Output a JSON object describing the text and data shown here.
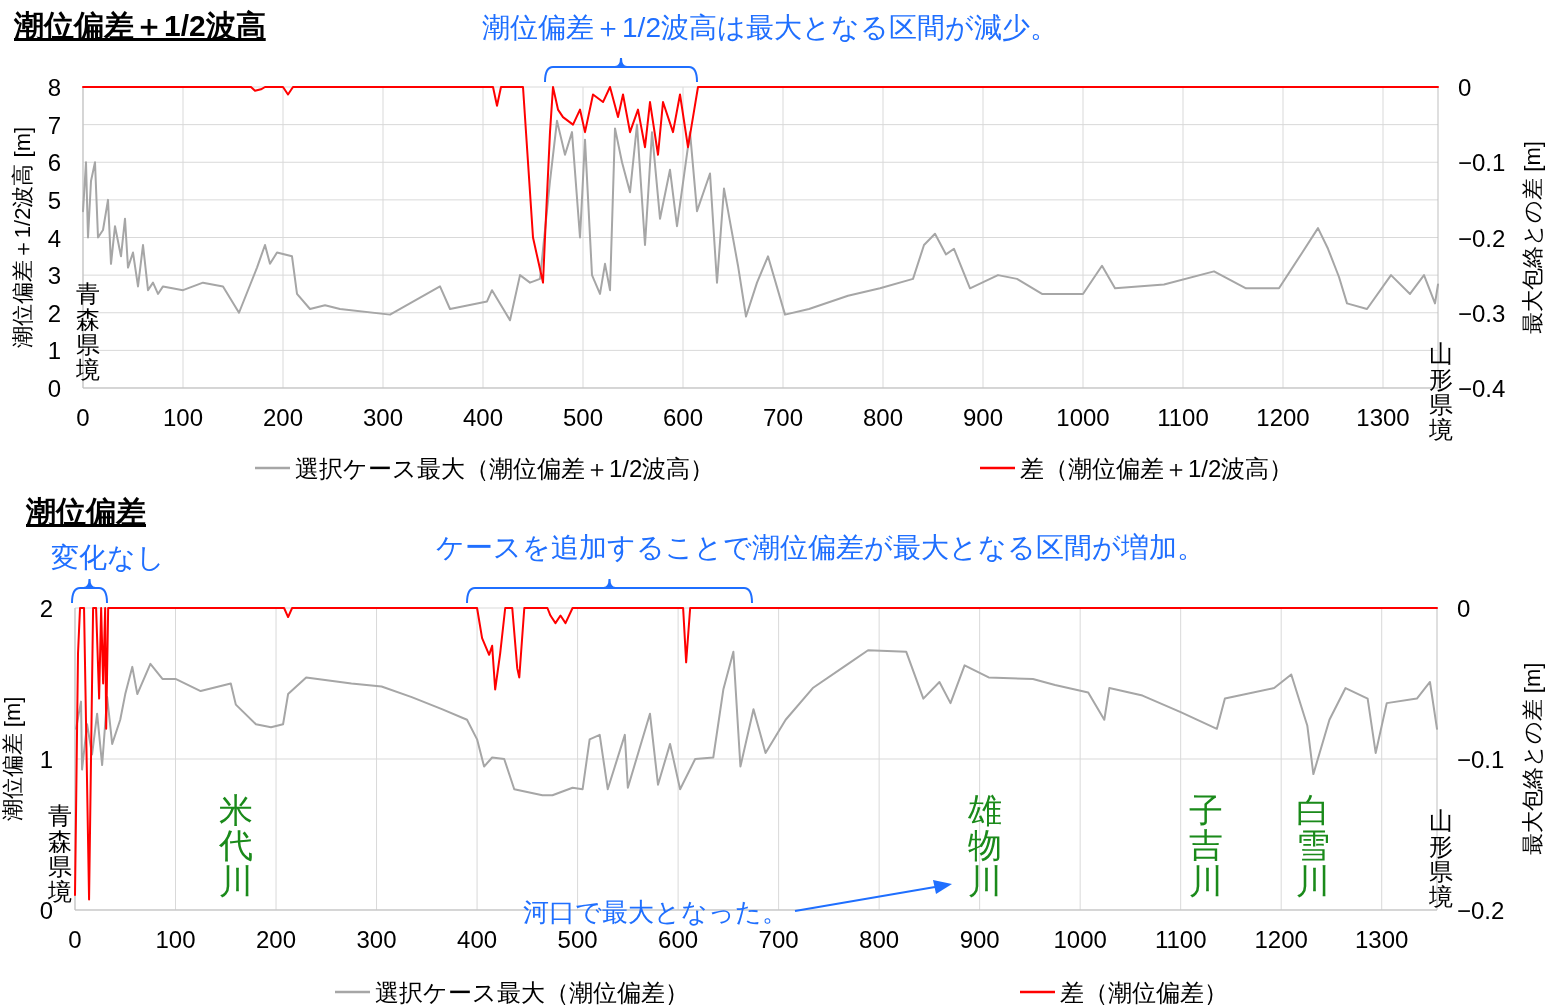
{
  "chart_data": [
    {
      "type": "line",
      "title": "潮位偏差＋1/2波高",
      "ylabel": "潮位偏差＋1/2波高 [m]",
      "y2label": "最大包絡との差 [m]",
      "xlim": [
        0,
        1355
      ],
      "xticks": [
        0,
        100,
        200,
        300,
        400,
        500,
        600,
        700,
        800,
        900,
        1000,
        1100,
        1200,
        1300
      ],
      "ylim": [
        0,
        8
      ],
      "yticks": [
        0,
        1,
        2,
        3,
        4,
        5,
        6,
        7,
        8
      ],
      "y2lim": [
        -0.4,
        0
      ],
      "y2ticks": [
        {
          "value": -0.4,
          "label": "−0.4"
        },
        {
          "value": -0.3,
          "label": "−0.3"
        },
        {
          "value": -0.2,
          "label": "−0.2"
        },
        {
          "value": -0.1,
          "label": "−0.1"
        },
        0
      ],
      "grid": true,
      "legend": "bottom",
      "line_style": "solid",
      "series": [
        {
          "name": "選択ケース最大（潮位偏差＋1/2波高）",
          "color": "#a6a6a6",
          "x": [
            0,
            3,
            5,
            8,
            12,
            15,
            20,
            25,
            28,
            32,
            38,
            42,
            45,
            50,
            55,
            60,
            65,
            70,
            75,
            80,
            100,
            120,
            140,
            156,
            174,
            182,
            187,
            194,
            209,
            214,
            227,
            242,
            257,
            307,
            357,
            367,
            404,
            409,
            427,
            437,
            447,
            457,
            467,
            474,
            482,
            489,
            497,
            502,
            509,
            517,
            522,
            527,
            532,
            539,
            547,
            554,
            562,
            569,
            577,
            587,
            594,
            607,
            614,
            627,
            634,
            641,
            655,
            663,
            674,
            685,
            702,
            726,
            765,
            797,
            830,
            841,
            852,
            863,
            871,
            887,
            915,
            934,
            959,
            1000,
            1019,
            1032,
            1081,
            1131,
            1163,
            1196,
            1218,
            1235,
            1245,
            1256,
            1264,
            1284,
            1308,
            1327,
            1341,
            1352,
            1355
          ],
          "values": [
            4.7,
            6.0,
            4.0,
            5.5,
            6.0,
            4.0,
            4.2,
            5.0,
            3.3,
            4.3,
            3.5,
            4.5,
            3.2,
            3.6,
            2.7,
            3.8,
            2.6,
            2.8,
            2.5,
            2.7,
            2.6,
            2.8,
            2.7,
            2.0,
            3.2,
            3.8,
            3.3,
            3.6,
            3.5,
            2.5,
            2.1,
            2.2,
            2.1,
            1.95,
            2.7,
            2.1,
            2.3,
            2.6,
            1.8,
            3.0,
            2.8,
            2.9,
            5.5,
            7.1,
            6.2,
            6.8,
            4.0,
            6.6,
            3.0,
            2.5,
            3.3,
            2.6,
            6.9,
            6.0,
            5.2,
            7.0,
            3.8,
            6.8,
            4.5,
            5.8,
            4.3,
            6.8,
            4.7,
            5.7,
            2.8,
            5.3,
            3.25,
            1.9,
            2.8,
            3.5,
            1.95,
            2.1,
            2.45,
            2.65,
            2.9,
            3.8,
            4.1,
            3.55,
            3.7,
            2.65,
            3.0,
            2.9,
            2.5,
            2.5,
            3.25,
            2.65,
            2.75,
            3.1,
            2.65,
            2.65,
            3.55,
            4.25,
            3.7,
            2.95,
            2.25,
            2.1,
            3.0,
            2.5,
            3.0,
            2.25,
            2.75
          ]
        },
        {
          "name": "差（潮位偏差＋1/2波高）",
          "color": "#ff0000",
          "axis": "y2",
          "x": [
            0,
            168,
            172,
            178,
            182,
            200,
            205,
            210,
            410,
            414,
            418,
            440,
            445,
            450,
            455,
            460,
            462,
            467,
            470,
            475,
            480,
            490,
            497,
            502,
            510,
            520,
            527,
            535,
            540,
            547,
            555,
            562,
            567,
            575,
            580,
            590,
            597,
            605,
            610,
            615,
            1355
          ],
          "values": [
            0,
            0,
            -0.005,
            -0.003,
            0,
            0,
            -0.01,
            0,
            0,
            -0.025,
            0,
            0,
            -0.1,
            -0.2,
            -0.23,
            -0.26,
            -0.2,
            -0.06,
            0,
            -0.03,
            -0.04,
            -0.05,
            -0.03,
            -0.06,
            -0.01,
            -0.02,
            0,
            -0.04,
            -0.01,
            -0.06,
            -0.03,
            -0.08,
            -0.02,
            -0.09,
            -0.02,
            -0.06,
            -0.01,
            -0.08,
            -0.04,
            0,
            0
          ]
        }
      ],
      "annotations": [
        "潮位偏差＋1/2波高は最大となる区間が減少。",
        "青森県境",
        "山形県境"
      ]
    },
    {
      "type": "line",
      "title": "潮位偏差",
      "ylabel": "潮位偏差 [m]",
      "y2label": "最大包絡との差 [m]",
      "xlim": [
        0,
        1355
      ],
      "xticks": [
        0,
        100,
        200,
        300,
        400,
        500,
        600,
        700,
        800,
        900,
        1000,
        1100,
        1200,
        1300
      ],
      "ylim": [
        0,
        2
      ],
      "yticks": [
        0,
        1,
        2
      ],
      "y2lim": [
        -0.2,
        0
      ],
      "y2ticks": [
        {
          "value": -0.2,
          "label": "−0.2"
        },
        {
          "value": -0.1,
          "label": "−0.1"
        },
        0
      ],
      "grid": true,
      "legend": "bottom",
      "line_style": "solid",
      "series": [
        {
          "name": "選択ケース最大（潮位偏差）",
          "color": "#a6a6a6",
          "x": [
            1,
            6,
            7,
            12,
            17,
            22,
            27,
            32,
            37,
            45,
            50,
            57,
            62,
            75,
            87,
            100,
            125,
            155,
            160,
            180,
            195,
            207,
            212,
            230,
            275,
            305,
            335,
            365,
            390,
            400,
            407,
            415,
            427,
            437,
            465,
            475,
            495,
            505,
            512,
            522,
            530,
            547,
            550,
            572,
            580,
            592,
            602,
            617,
            635,
            645,
            655,
            662,
            675,
            687,
            707,
            734,
            767,
            789,
            827,
            844,
            860,
            871,
            885,
            909,
            953,
            975,
            1008,
            1024,
            1029,
            1062,
            1100,
            1136,
            1144,
            1193,
            1210,
            1226,
            1232,
            1248,
            1264,
            1286,
            1294,
            1305,
            1335,
            1348,
            1355
          ],
          "values": [
            1.2,
            1.38,
            0.93,
            1.23,
            1.03,
            1.3,
            0.96,
            1.41,
            1.1,
            1.26,
            1.43,
            1.61,
            1.43,
            1.63,
            1.53,
            1.53,
            1.45,
            1.5,
            1.36,
            1.23,
            1.21,
            1.23,
            1.43,
            1.54,
            1.5,
            1.48,
            1.41,
            1.33,
            1.26,
            1.13,
            0.95,
            1.01,
            1.0,
            0.8,
            0.76,
            0.76,
            0.81,
            0.8,
            1.13,
            1.16,
            0.8,
            1.16,
            0.81,
            1.3,
            0.83,
            1.1,
            0.8,
            1.0,
            1.01,
            1.46,
            1.71,
            0.95,
            1.33,
            1.04,
            1.26,
            1.47,
            1.62,
            1.72,
            1.71,
            1.4,
            1.51,
            1.37,
            1.62,
            1.54,
            1.53,
            1.49,
            1.44,
            1.26,
            1.47,
            1.42,
            1.31,
            1.2,
            1.4,
            1.47,
            1.56,
            1.22,
            0.9,
            1.26,
            1.47,
            1.4,
            1.04,
            1.37,
            1.4,
            1.51,
            1.2
          ]
        },
        {
          "name": "差（潮位偏差）",
          "color": "#ff0000",
          "axis": "y2",
          "x": [
            0,
            3,
            5,
            9,
            14,
            18,
            21,
            24,
            26,
            28,
            30,
            31,
            33,
            208,
            212,
            216,
            400,
            405,
            412,
            415,
            418,
            423,
            428,
            435,
            440,
            442,
            447,
            470,
            473,
            478,
            483,
            488,
            495,
            605,
            608,
            612,
            1355
          ],
          "values": [
            -0.19,
            -0.03,
            0,
            0,
            -0.193,
            0,
            0,
            -0.06,
            0,
            -0.05,
            0,
            -0.08,
            0,
            0,
            -0.006,
            0,
            0,
            -0.02,
            -0.031,
            -0.025,
            -0.054,
            -0.03,
            0,
            0,
            -0.04,
            -0.046,
            0,
            0,
            -0.005,
            -0.01,
            -0.005,
            -0.01,
            0,
            0,
            -0.036,
            0,
            0
          ]
        }
      ],
      "annotations": [
        "変化なし",
        "ケースを追加することで潮位偏差が最大となる区間が増加。",
        "青森県境",
        "米代川",
        "雄物川",
        "子吉川",
        "白雪川",
        "山形県境",
        "河口で最大となった。"
      ]
    }
  ]
}
